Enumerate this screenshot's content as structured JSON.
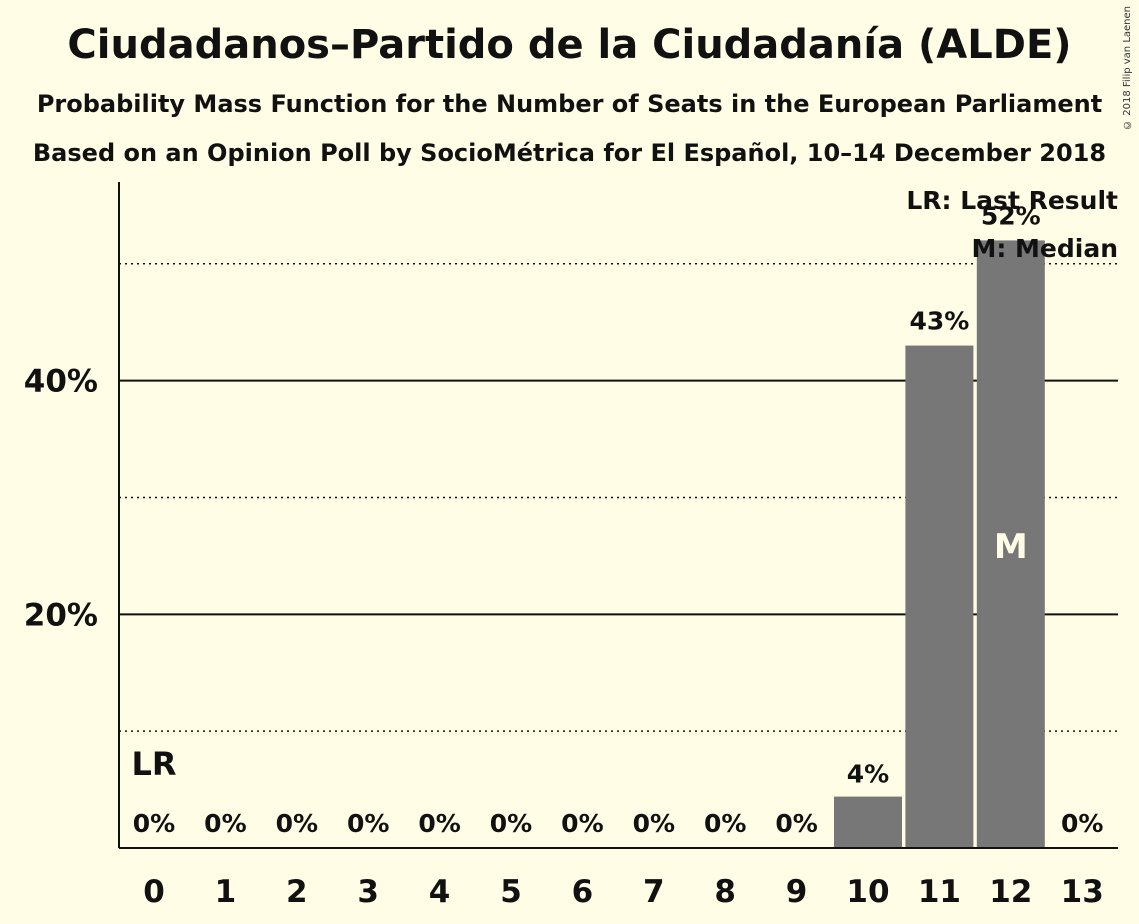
{
  "title": "Ciudadanos–Partido de la Ciudadanía (ALDE)",
  "subtitle": "Probability Mass Function for the Number of Seats in the European Parliament",
  "subtitle2": "Based on an Opinion Poll by SocioMétrica for El Español, 10–14 December 2018",
  "copyright": "© 2018 Filip van Laenen",
  "legend": {
    "last_result": "LR: Last Result",
    "median": "M: Median"
  },
  "markers": {
    "last_result_label": "LR",
    "median_label": "M",
    "last_result_seat": 0,
    "median_seat": 12
  },
  "colors": {
    "background": "#fffde6",
    "bar": "#777777",
    "text": "#111111"
  },
  "chart_data": {
    "type": "bar",
    "categories": [
      "0",
      "1",
      "2",
      "3",
      "4",
      "5",
      "6",
      "7",
      "8",
      "9",
      "10",
      "11",
      "12",
      "13"
    ],
    "values": [
      0,
      0,
      0,
      0,
      0,
      0,
      0,
      0,
      0,
      0,
      4.4,
      43,
      52,
      0
    ],
    "value_labels": [
      "0%",
      "0%",
      "0%",
      "0%",
      "0%",
      "0%",
      "0%",
      "0%",
      "0%",
      "0%",
      "4%",
      "43%",
      "52%",
      "0%"
    ],
    "ylim": [
      0,
      57
    ],
    "y_ticks": [
      {
        "value": 20,
        "label": "20%"
      },
      {
        "value": 40,
        "label": "40%"
      }
    ],
    "minor_gridlines": [
      10,
      30,
      50
    ],
    "grid": true,
    "legend_position": "top-right"
  }
}
